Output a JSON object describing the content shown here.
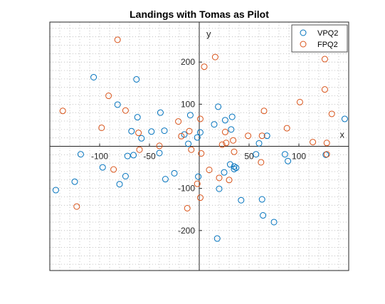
{
  "chart_data": {
    "type": "scatter",
    "title": "Landings with Tomas as Pilot",
    "xlabel": "x",
    "ylabel": "y",
    "xlim": [
      -150,
      150
    ],
    "ylim": [
      -295,
      295
    ],
    "xticks": [
      -100,
      -50,
      50,
      100
    ],
    "yticks": [
      -200,
      -100,
      100,
      200
    ],
    "grid": "minor-dotted",
    "axis_location": "origin",
    "legend_position": "top-right",
    "series": [
      {
        "name": "VPQ2",
        "color": "#0072BD",
        "marker": "open-circle",
        "points": [
          [
            -144,
            -104
          ],
          [
            -125,
            -84
          ],
          [
            -119,
            -19
          ],
          [
            -106,
            164
          ],
          [
            -97,
            -50
          ],
          [
            -82,
            99
          ],
          [
            -80,
            -90
          ],
          [
            -74,
            -71
          ],
          [
            -72,
            -23
          ],
          [
            -68,
            36
          ],
          [
            -66,
            -21
          ],
          [
            -63,
            159
          ],
          [
            -62,
            69
          ],
          [
            -58,
            19
          ],
          [
            -48,
            35
          ],
          [
            -40,
            -16
          ],
          [
            -39,
            80
          ],
          [
            -35,
            37
          ],
          [
            -34,
            -78
          ],
          [
            -25,
            -64
          ],
          [
            -15,
            28
          ],
          [
            -11,
            6
          ],
          [
            -9,
            74
          ],
          [
            -2,
            21
          ],
          [
            -1,
            -72
          ],
          [
            1,
            33
          ],
          [
            15,
            52
          ],
          [
            19,
            94
          ],
          [
            20,
            -101
          ],
          [
            25,
            -62
          ],
          [
            26,
            62
          ],
          [
            31,
            -43
          ],
          [
            32,
            40
          ],
          [
            33,
            70
          ],
          [
            35,
            -54
          ],
          [
            35,
            -48
          ],
          [
            37,
            -51
          ],
          [
            42,
            -128
          ],
          [
            57,
            -19
          ],
          [
            60,
            7
          ],
          [
            63,
            -126
          ],
          [
            64,
            -164
          ],
          [
            68,
            25
          ],
          [
            75,
            -180
          ],
          [
            86,
            -19
          ],
          [
            89,
            -35
          ],
          [
            127,
            -20
          ],
          [
            146,
            65
          ],
          [
            18,
            -219
          ]
        ]
      },
      {
        "name": "FPQ2",
        "color": "#D95319",
        "marker": "open-circle",
        "points": [
          [
            -137,
            84
          ],
          [
            -123,
            -143
          ],
          [
            -98,
            44
          ],
          [
            -91,
            120
          ],
          [
            -86,
            -55
          ],
          [
            -82,
            253
          ],
          [
            -74,
            85
          ],
          [
            -61,
            32
          ],
          [
            -60,
            -8
          ],
          [
            -40,
            1
          ],
          [
            -21,
            59
          ],
          [
            -12,
            -147
          ],
          [
            -10,
            36
          ],
          [
            -8,
            -8
          ],
          [
            -2,
            -89
          ],
          [
            1,
            65
          ],
          [
            1,
            -122
          ],
          [
            2,
            -17
          ],
          [
            5,
            189
          ],
          [
            10,
            -56
          ],
          [
            16,
            212
          ],
          [
            20,
            -75
          ],
          [
            23,
            4
          ],
          [
            26,
            34
          ],
          [
            27,
            8
          ],
          [
            30,
            -80
          ],
          [
            34,
            14
          ],
          [
            35,
            -13
          ],
          [
            49,
            25
          ],
          [
            62,
            -38
          ],
          [
            63,
            25
          ],
          [
            65,
            84
          ],
          [
            88,
            43
          ],
          [
            101,
            105
          ],
          [
            114,
            10
          ],
          [
            126,
            135
          ],
          [
            126,
            207
          ],
          [
            128,
            8
          ],
          [
            128,
            -19
          ],
          [
            133,
            77
          ],
          [
            -18,
            24
          ]
        ]
      }
    ]
  }
}
